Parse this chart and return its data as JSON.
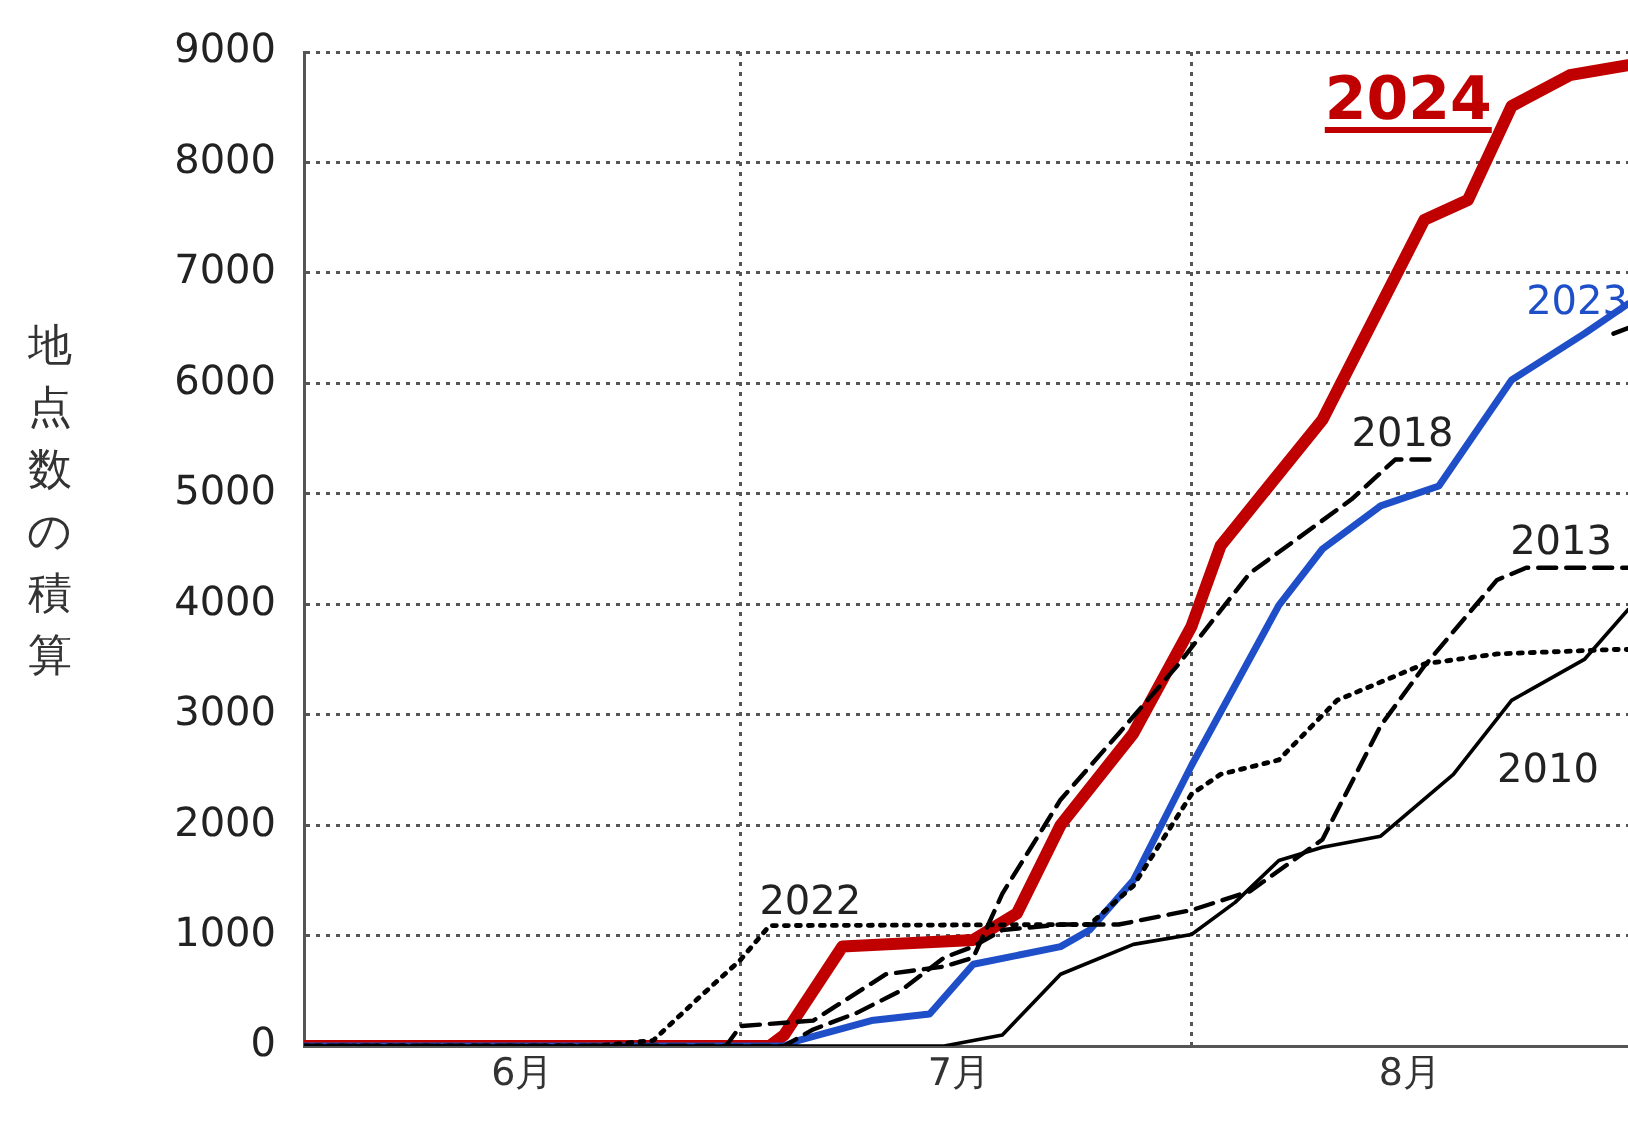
{
  "chart_data": {
    "type": "line",
    "ylabel": "地点数の積算",
    "xlim": [
      "--06-01",
      "--08-31"
    ],
    "xticks": [
      {
        "value": "--06-16",
        "label": "6月"
      },
      {
        "value": "--07-01",
        "label": null
      },
      {
        "value": "--07-16",
        "label": "7月"
      },
      {
        "value": "--08-01",
        "label": null
      },
      {
        "value": "--08-16",
        "label": "8月"
      }
    ],
    "ylim": [
      0,
      9000
    ],
    "yticks": [
      0,
      1000,
      2000,
      3000,
      4000,
      5000,
      6000,
      7000,
      8000,
      9000
    ],
    "grid": true,
    "legend": false,
    "marker": "none",
    "series": [
      {
        "name": "2010",
        "color": "#000000",
        "line_style": "solid",
        "x": [
          "--06-01",
          "--07-15",
          "--07-19",
          "--07-23",
          "--07-28",
          "--08-01",
          "--08-04",
          "--08-07",
          "--08-10",
          "--08-14",
          "--08-19",
          "--08-23",
          "--08-28",
          "--08-31"
        ],
        "values": [
          0,
          0,
          100,
          650,
          920,
          1010,
          1300,
          1680,
          1800,
          1900,
          2460,
          3130,
          3500,
          3950
        ]
      },
      {
        "name": "2013",
        "color": "#000000",
        "line_style": "dashed",
        "x": [
          "--06-01",
          "--07-04",
          "--07-06",
          "--07-09",
          "--07-12",
          "--07-15",
          "--07-17",
          "--07-19",
          "--07-23",
          "--07-27",
          "--08-01",
          "--08-05",
          "--08-10",
          "--08-14",
          "--08-17",
          "--08-22",
          "--08-24",
          "--08-29",
          "--08-31"
        ],
        "values": [
          0,
          0,
          150,
          300,
          500,
          800,
          900,
          1050,
          1100,
          1100,
          1230,
          1400,
          1870,
          2900,
          3440,
          4220,
          4330,
          4330,
          4330
        ]
      },
      {
        "name": "2018",
        "color": "#000000",
        "line_style": "dashed",
        "x": [
          "--06-01",
          "--06-30",
          "--07-01",
          "--07-06",
          "--07-11",
          "--07-15",
          "--07-17",
          "--07-19",
          "--07-23",
          "--07-27",
          "--07-31",
          "--08-05",
          "--08-12",
          "--08-15",
          "--08-18",
          "--08-22",
          "--08-30",
          "--08-31"
        ],
        "values": [
          0,
          0,
          180,
          230,
          650,
          720,
          800,
          1380,
          2230,
          2830,
          3440,
          4280,
          4950,
          5310,
          5310,
          null,
          6450,
          6500
        ]
      },
      {
        "name": "2022",
        "color": "#000000",
        "line_style": "dotted",
        "x": [
          "--06-01",
          "--06-21",
          "--06-25",
          "--06-28",
          "--07-01",
          "--07-03",
          "--07-25",
          "--07-28",
          "--08-01",
          "--08-03",
          "--08-07",
          "--08-11",
          "--08-17",
          "--08-22",
          "--08-30",
          "--08-31"
        ],
        "values": [
          0,
          0,
          50,
          420,
          780,
          1090,
          1100,
          1450,
          2280,
          2460,
          2590,
          3130,
          3460,
          3550,
          3590,
          3590
        ]
      },
      {
        "name": "2023",
        "color": "#1f4fc8",
        "line_style": "solid",
        "x": [
          "--06-01",
          "--07-04",
          "--07-05",
          "--07-10",
          "--07-14",
          "--07-17",
          "--07-23",
          "--07-25",
          "--07-28",
          "--08-01",
          "--08-07",
          "--08-10",
          "--08-14",
          "--08-18",
          "--08-23",
          "--08-28",
          "--08-31"
        ],
        "values": [
          0,
          0,
          50,
          230,
          290,
          740,
          900,
          1050,
          1500,
          2540,
          3990,
          4500,
          4890,
          5070,
          6030,
          6450,
          6720
        ]
      },
      {
        "name": "2024",
        "color": "#c00000",
        "line_style": "solid",
        "x": [
          "--06-01",
          "--07-03",
          "--07-04",
          "--07-08",
          "--07-17",
          "--07-20",
          "--07-23",
          "--07-28",
          "--08-01",
          "--08-03",
          "--08-10",
          "--08-17",
          "--08-20",
          "--08-23",
          "--08-27",
          "--08-31"
        ],
        "values": [
          0,
          0,
          100,
          900,
          960,
          1200,
          2000,
          2830,
          3800,
          4530,
          5670,
          7480,
          7660,
          8510,
          8790,
          8880
        ]
      }
    ]
  }
}
